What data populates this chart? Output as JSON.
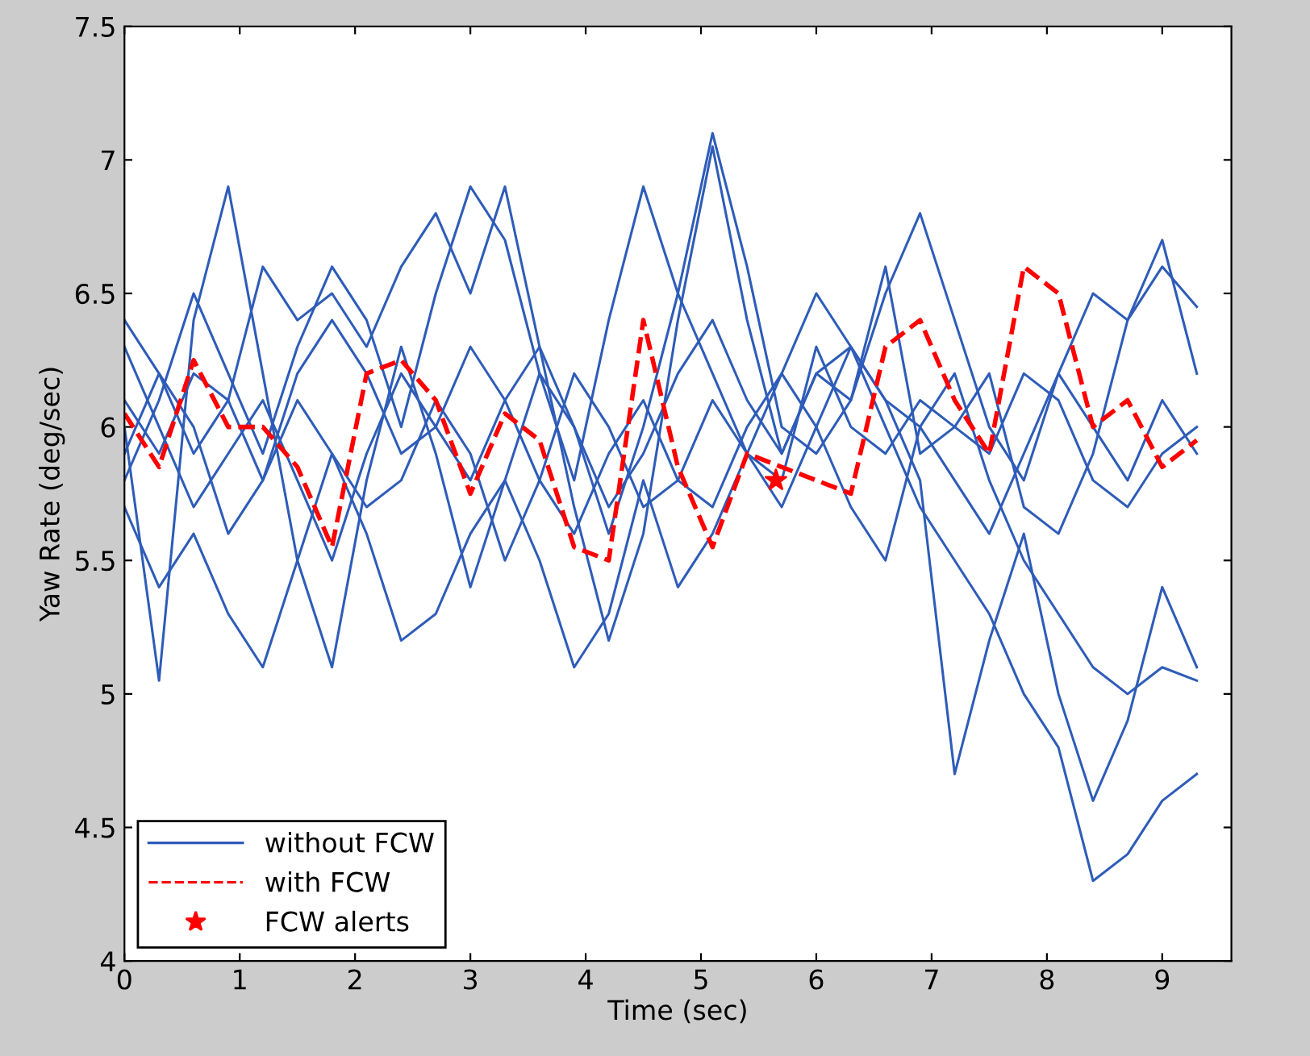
{
  "chart_data": {
    "type": "line",
    "xlabel": "Time (sec)",
    "ylabel": "Yaw Rate (deg/sec)",
    "x": [
      0,
      0.3,
      0.6,
      0.9,
      1.2,
      1.5,
      1.8,
      2.1,
      2.4,
      2.7,
      3.0,
      3.3,
      3.6,
      3.9,
      4.2,
      4.5,
      4.8,
      5.1,
      5.4,
      5.7,
      6.0,
      6.3,
      6.6,
      6.9,
      7.2,
      7.5,
      7.8,
      8.1,
      8.4,
      8.7,
      9.0,
      9.3
    ],
    "xlim": [
      0,
      9.6
    ],
    "xticks": [
      0,
      1,
      2,
      3,
      4,
      5,
      6,
      7,
      8,
      9
    ],
    "ylim": [
      4,
      7.5
    ],
    "yticks": [
      4,
      4.5,
      5,
      5.5,
      6,
      6.5,
      7,
      7.5
    ],
    "grid": false,
    "legend": "bottom left",
    "series": [
      {
        "name": "without FCW",
        "color": "#2e5cb8",
        "line_style": "solid",
        "values": [
          6.3,
          6.0,
          5.7,
          5.9,
          6.1,
          5.8,
          5.5,
          5.9,
          6.2,
          6.0,
          5.8,
          6.1,
          6.3,
          6.0,
          5.7,
          5.9,
          6.2,
          6.4,
          6.1,
          5.9,
          6.2,
          6.3,
          6.0,
          5.7,
          5.5,
          5.3,
          5.0,
          4.8,
          4.3,
          4.4,
          4.6,
          4.7
        ]
      },
      {
        "color": "#2e5cb8",
        "line_style": "solid",
        "values": [
          6.0,
          5.05,
          6.4,
          6.9,
          6.2,
          5.5,
          5.1,
          5.8,
          6.3,
          5.9,
          5.4,
          5.8,
          6.2,
          6.0,
          5.6,
          6.0,
          6.5,
          6.2,
          5.9,
          5.7,
          6.0,
          6.3,
          6.1,
          5.8,
          4.7,
          5.2,
          5.6,
          5.0,
          4.6,
          4.9,
          5.4,
          5.1
        ]
      },
      {
        "color": "#2e5cb8",
        "line_style": "solid",
        "values": [
          5.8,
          6.1,
          6.5,
          6.2,
          5.9,
          6.3,
          6.6,
          6.4,
          6.0,
          6.5,
          6.9,
          6.7,
          6.2,
          5.8,
          6.4,
          6.9,
          6.5,
          7.1,
          6.6,
          6.0,
          5.9,
          6.1,
          6.5,
          6.8,
          6.4,
          6.0,
          5.8,
          6.2,
          6.5,
          6.4,
          6.6,
          6.45
        ]
      },
      {
        "color": "#2e5cb8",
        "line_style": "solid",
        "values": [
          6.4,
          6.2,
          5.9,
          6.1,
          6.6,
          6.4,
          6.5,
          6.3,
          6.6,
          6.8,
          6.5,
          6.9,
          6.3,
          5.7,
          5.2,
          5.6,
          6.4,
          7.05,
          6.4,
          5.9,
          6.2,
          6.1,
          6.6,
          5.9,
          6.0,
          6.2,
          5.7,
          5.6,
          5.9,
          6.4,
          6.7,
          6.2
        ]
      },
      {
        "color": "#2e5cb8",
        "line_style": "solid",
        "values": [
          5.7,
          5.4,
          5.6,
          5.3,
          5.1,
          5.5,
          5.9,
          5.6,
          5.2,
          5.3,
          5.6,
          5.8,
          5.5,
          5.1,
          5.3,
          5.8,
          5.4,
          5.6,
          5.9,
          6.2,
          6.0,
          5.7,
          5.5,
          6.0,
          6.2,
          5.8,
          5.5,
          5.3,
          5.1,
          5.0,
          5.1,
          5.05
        ]
      },
      {
        "color": "#2e5cb8",
        "line_style": "solid",
        "values": [
          6.1,
          5.9,
          6.2,
          6.1,
          5.8,
          6.1,
          5.9,
          5.7,
          5.8,
          6.1,
          5.9,
          5.5,
          5.8,
          6.2,
          6.0,
          5.7,
          5.8,
          6.1,
          5.9,
          5.8,
          6.3,
          6.0,
          5.9,
          6.1,
          6.0,
          5.9,
          6.2,
          6.1,
          5.8,
          5.7,
          5.9,
          6.0
        ]
      },
      {
        "color": "#2e5cb8",
        "line_style": "solid",
        "values": [
          5.9,
          6.2,
          6.0,
          5.6,
          5.8,
          6.2,
          6.4,
          6.2,
          5.9,
          6.0,
          6.3,
          6.1,
          5.8,
          5.6,
          5.9,
          6.1,
          5.8,
          5.7,
          6.0,
          6.2,
          6.5,
          6.3,
          6.1,
          6.0,
          5.8,
          5.6,
          5.9,
          6.2,
          6.0,
          5.8,
          6.1,
          5.9
        ]
      },
      {
        "name": "with FCW",
        "color": "#ff0000",
        "line_style": "dashed",
        "values": [
          6.05,
          5.85,
          6.25,
          6.0,
          6.0,
          5.85,
          5.55,
          6.2,
          6.25,
          6.1,
          5.75,
          6.05,
          5.95,
          5.55,
          5.5,
          6.4,
          5.85,
          5.55,
          5.9,
          5.85,
          5.8,
          5.75,
          6.3,
          6.4,
          6.1,
          5.9,
          6.6,
          6.5,
          6.0,
          6.1,
          5.85,
          5.95
        ]
      },
      {
        "name": "FCW alerts",
        "type": "scatter",
        "marker": "star",
        "color": "#ff0000",
        "x": [
          5.65
        ],
        "values": [
          5.8
        ]
      }
    ]
  }
}
